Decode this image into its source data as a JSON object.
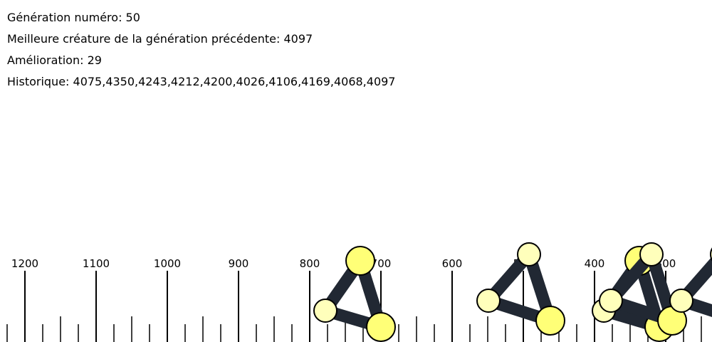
{
  "hud": {
    "generation": "Génération numéro: 50",
    "best_previous": "Meilleure créature de la génération précédente: 4097",
    "improvement": "Amélioration: 29",
    "history": "Historique: 4075,4350,4243,4212,4200,4026,4106,4169,4068,4097"
  },
  "ruler": {
    "labels": [
      "1200",
      "1100",
      "1000",
      "900",
      "800",
      "700",
      "600",
      "500",
      "400",
      "300"
    ]
  },
  "colors": {
    "muscle": "#212833",
    "node_bright": "#ffff77",
    "node_pale": "#ffffbb",
    "outline": "#000000"
  }
}
